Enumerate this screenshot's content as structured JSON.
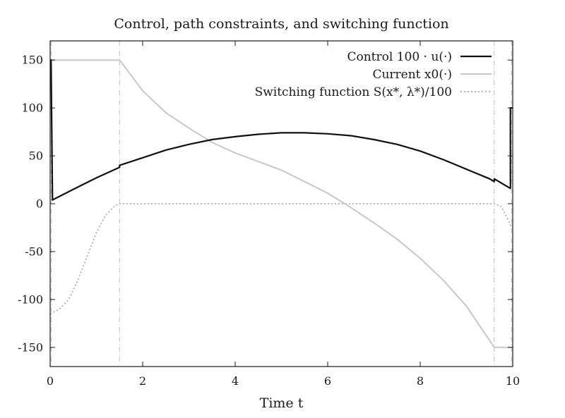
{
  "chart_data": {
    "type": "line",
    "title": "Control, path constraints, and switching function",
    "xlabel": "Time t",
    "ylabel": "",
    "xlim": [
      0,
      10
    ],
    "ylim": [
      -170,
      170
    ],
    "xticks": [
      0,
      2,
      4,
      6,
      8,
      10
    ],
    "yticks": [
      -150,
      -100,
      -50,
      0,
      50,
      100,
      150
    ],
    "legend_position": "top-right",
    "grid": false,
    "switch_times": [
      1.5,
      9.6
    ],
    "series": [
      {
        "name": "Control 100 · u(·)",
        "color": "#111111",
        "style": "solid",
        "x": [
          0,
          0.02,
          0.05,
          0.5,
          1.0,
          1.5,
          1.5,
          2.0,
          2.5,
          3.0,
          3.5,
          4.0,
          4.5,
          5.0,
          5.5,
          6.0,
          6.5,
          7.0,
          7.5,
          8.0,
          8.5,
          9.0,
          9.5,
          9.6,
          9.6,
          9.95,
          9.95,
          10.0
        ],
        "y": [
          150,
          150,
          4,
          15,
          27,
          38,
          40,
          48,
          56,
          62,
          67,
          70,
          72.5,
          74,
          74,
          73,
          71,
          67,
          62,
          55,
          46,
          36,
          26,
          23,
          26,
          16,
          100,
          100
        ]
      },
      {
        "name": "Current x0(·)",
        "color": "#c8c8c8",
        "style": "solid",
        "x": [
          0,
          0.05,
          1.5,
          2.0,
          2.5,
          3.0,
          3.5,
          4.0,
          4.5,
          5.0,
          5.5,
          6.0,
          6.5,
          7.0,
          7.5,
          8.0,
          8.5,
          9.0,
          9.6,
          9.95,
          10.0
        ],
        "y": [
          150,
          150,
          150,
          118,
          95,
          79,
          64,
          53,
          44,
          35,
          23,
          11,
          -4,
          -20,
          -37,
          -57,
          -80,
          -107,
          -150,
          -150,
          -150
        ]
      },
      {
        "name": "Switching function S(x*, λ*)/100",
        "color": "#b4b4b4",
        "style": "dotted",
        "x": [
          0,
          0.2,
          0.4,
          0.6,
          0.8,
          1.0,
          1.2,
          1.4,
          1.5,
          2.0,
          4.0,
          6.0,
          8.0,
          9.6,
          9.75,
          9.85,
          9.95,
          10.0
        ],
        "y": [
          -115,
          -110,
          -100,
          -80,
          -55,
          -30,
          -12,
          -2,
          0,
          0,
          0,
          0,
          0,
          0,
          -3,
          -12,
          -22,
          -25
        ]
      }
    ]
  }
}
